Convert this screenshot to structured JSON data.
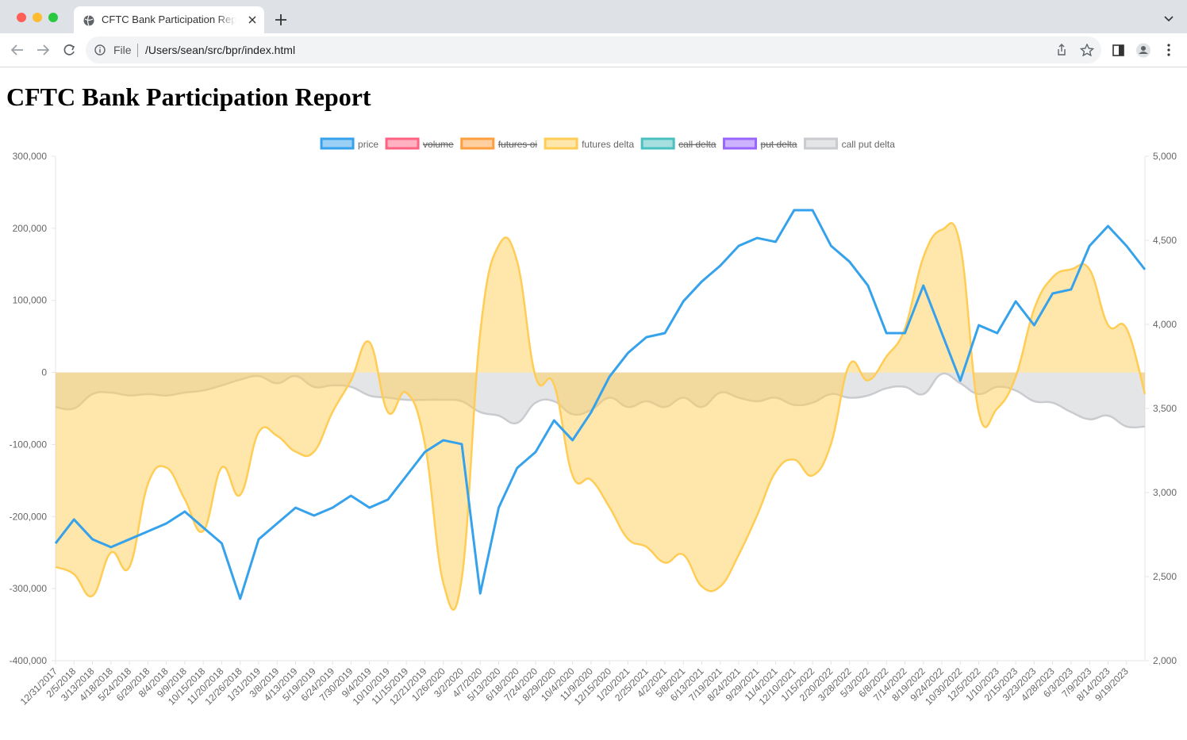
{
  "browser": {
    "tab_title": "CFTC Bank Participation Report",
    "scheme": "File",
    "url": "/Users/sean/src/bpr/index.html"
  },
  "page": {
    "heading": "CFTC Bank Participation Report"
  },
  "chart_data": {
    "type": "line",
    "categories": [
      "12/31/2017",
      "2/5/2018",
      "3/13/2018",
      "4/18/2018",
      "5/24/2018",
      "6/29/2018",
      "8/4/2018",
      "9/9/2018",
      "10/15/2018",
      "11/20/2018",
      "12/26/2018",
      "1/31/2019",
      "3/8/2019",
      "4/13/2019",
      "5/19/2019",
      "6/24/2019",
      "7/30/2019",
      "9/4/2019",
      "10/10/2019",
      "11/15/2019",
      "12/21/2019",
      "1/26/2020",
      "3/2/2020",
      "4/7/2020",
      "5/13/2020",
      "6/18/2020",
      "7/24/2020",
      "8/29/2020",
      "10/4/2020",
      "11/9/2020",
      "12/15/2020",
      "1/20/2021",
      "2/25/2021",
      "4/2/2021",
      "5/8/2021",
      "6/13/2021",
      "7/19/2021",
      "8/24/2021",
      "9/29/2021",
      "11/4/2021",
      "12/10/2021",
      "1/15/2022",
      "2/20/2022",
      "3/28/2022",
      "5/3/2022",
      "6/8/2022",
      "7/14/2022",
      "8/19/2022",
      "9/24/2022",
      "10/30/2022",
      "12/5/2022",
      "1/10/2023",
      "2/15/2023",
      "3/23/2023",
      "4/28/2023",
      "6/3/2023",
      "7/9/2023",
      "8/14/2023",
      "9/19/2023",
      null
    ],
    "series": [
      {
        "name": "price",
        "color": "#36a2eb",
        "axis": "y2",
        "values": [
          2698,
          2840,
          2722,
          2675,
          2722,
          2769,
          2816,
          2887,
          2792,
          2698,
          2368,
          2722,
          2816,
          2910,
          2863,
          2910,
          2981,
          2910,
          2958,
          3099,
          3241,
          3311,
          3288,
          2400,
          2910,
          3146,
          3241,
          3429,
          3311,
          3476,
          3689,
          3830,
          3924,
          3948,
          4137,
          4255,
          4349,
          4467,
          4514,
          4491,
          4679,
          4679,
          4467,
          4373,
          4231,
          3948,
          3948,
          4231,
          3948,
          3665,
          3995,
          3948,
          4137,
          3995,
          4184,
          4208,
          4467,
          4585,
          4467,
          4326
        ]
      },
      {
        "name": "volume",
        "color": "#ff6384",
        "hidden": true
      },
      {
        "name": "futures oi",
        "color": "#ff9f40",
        "hidden": true
      },
      {
        "name": "futures delta",
        "color": "#ffcd56",
        "fill": true,
        "values": [
          -270000,
          -280000,
          -310000,
          -250000,
          -270000,
          -155000,
          -132000,
          -176000,
          -220000,
          -132000,
          -170000,
          -83000,
          -88000,
          -110000,
          -110000,
          -55000,
          -11000,
          42000,
          -55000,
          -28000,
          -99000,
          -292000,
          -286000,
          55000,
          176000,
          154000,
          -6000,
          -17000,
          -143000,
          -149000,
          -187000,
          -231000,
          -242000,
          -264000,
          -253000,
          -297000,
          -297000,
          -253000,
          -198000,
          -138000,
          -121000,
          -143000,
          -99000,
          11000,
          -11000,
          22000,
          61000,
          160000,
          198000,
          176000,
          -55000,
          -50000,
          -6000,
          88000,
          132000,
          143000,
          143000,
          66000,
          61000,
          -30000
        ]
      },
      {
        "name": "call delta",
        "color": "#4bc0c0",
        "hidden": true
      },
      {
        "name": "put delta",
        "color": "#9966ff",
        "hidden": true
      },
      {
        "name": "call put delta",
        "color": "#c9cbcf",
        "fill": true,
        "values": [
          -48000,
          -50000,
          -30000,
          -28000,
          -32000,
          -30000,
          -32000,
          -28000,
          -25000,
          -18000,
          -10000,
          -5000,
          -15000,
          -5000,
          -20000,
          -18000,
          -20000,
          -32000,
          -35000,
          -38000,
          -38000,
          -38000,
          -40000,
          -55000,
          -60000,
          -70000,
          -42000,
          -40000,
          -58000,
          -52000,
          -35000,
          -48000,
          -40000,
          -48000,
          -35000,
          -48000,
          -28000,
          -35000,
          -40000,
          -35000,
          -45000,
          -42000,
          -30000,
          -35000,
          -32000,
          -22000,
          -20000,
          -30000,
          -2000,
          -15000,
          -30000,
          -20000,
          -25000,
          -40000,
          -42000,
          -55000,
          -65000,
          -60000,
          -75000,
          -75000
        ]
      }
    ],
    "ylim": [
      -400000,
      300000
    ],
    "yticks": [
      {
        "value": -400000,
        "label": "-400,000"
      },
      {
        "value": -300000,
        "label": "-300,000"
      },
      {
        "value": -200000,
        "label": "-200,000"
      },
      {
        "value": -100000,
        "label": "-100,000"
      },
      0,
      {
        "value": 100000,
        "label": "100,000"
      },
      {
        "value": 200000,
        "label": "200,000"
      },
      {
        "value": 300000,
        "label": "300,000"
      }
    ],
    "y2lim": [
      2000,
      5000
    ],
    "y2ticks": [
      {
        "value": 2000,
        "label": "2,000"
      },
      {
        "value": 2500,
        "label": "2,500"
      },
      {
        "value": 3000,
        "label": "3,000"
      },
      {
        "value": 3500,
        "label": "3,500"
      },
      {
        "value": 4000,
        "label": "4,000"
      },
      {
        "value": 4500,
        "label": "4,500"
      },
      {
        "value": 5000,
        "label": "5,000"
      }
    ],
    "grid": false,
    "legend": "top"
  }
}
